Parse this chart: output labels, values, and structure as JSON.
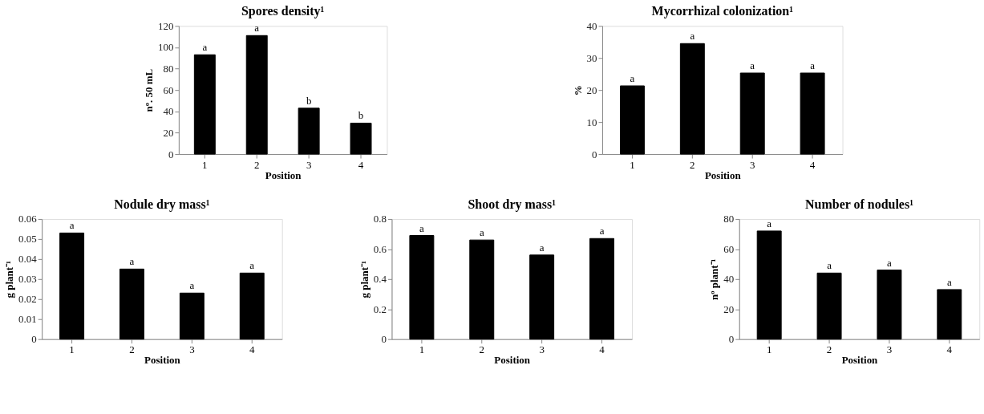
{
  "chart_data": [
    {
      "type": "bar",
      "title": "Spores density¹",
      "xlabel": "Position",
      "ylabel": "nº. 50 mL",
      "categories": [
        "1",
        "2",
        "3",
        "4"
      ],
      "values": [
        93,
        111,
        43,
        29
      ],
      "color": "#000000",
      "ylim": [
        0,
        120
      ],
      "yticks": [
        0,
        20,
        40,
        60,
        80,
        100,
        120
      ],
      "grid": false,
      "annotations": [
        {
          "text": "a",
          "x": "1",
          "y": 93
        },
        {
          "text": "a",
          "x": "2",
          "y": 111
        },
        {
          "text": "b",
          "x": "3",
          "y": 43
        },
        {
          "text": "b",
          "x": "4",
          "y": 29
        }
      ]
    },
    {
      "type": "bar",
      "title": "Mycorrhizal colonization¹",
      "xlabel": "Position",
      "ylabel": "%",
      "categories": [
        "1",
        "2",
        "3",
        "4"
      ],
      "values": [
        21.3,
        34.5,
        25.3,
        25.3
      ],
      "color": "#000000",
      "ylim": [
        0,
        40
      ],
      "yticks": [
        0,
        10,
        20,
        30,
        40
      ],
      "grid": false,
      "annotations": [
        {
          "text": "a",
          "x": "1",
          "y": 21.3
        },
        {
          "text": "a",
          "x": "2",
          "y": 34.5
        },
        {
          "text": "a",
          "x": "3",
          "y": 25.3
        },
        {
          "text": "a",
          "x": "4",
          "y": 25.3
        }
      ]
    },
    {
      "type": "bar",
      "title": "Nodule dry mass¹",
      "xlabel": "Position",
      "ylabel": "g plant⁻¹",
      "categories": [
        "1",
        "2",
        "3",
        "4"
      ],
      "values": [
        0.053,
        0.035,
        0.023,
        0.033
      ],
      "color": "#000000",
      "ylim": [
        0,
        0.06
      ],
      "yticks": [
        0,
        0.01,
        0.02,
        0.03,
        0.04,
        0.05,
        0.06
      ],
      "grid": false,
      "annotations": [
        {
          "text": "a",
          "x": "1",
          "y": 0.053
        },
        {
          "text": "a",
          "x": "2",
          "y": 0.035
        },
        {
          "text": "a",
          "x": "3",
          "y": 0.023
        },
        {
          "text": "a",
          "x": "4",
          "y": 0.033
        }
      ]
    },
    {
      "type": "bar",
      "title": "Shoot dry mass¹",
      "xlabel": "Position",
      "ylabel": "g plant⁻¹",
      "categories": [
        "1",
        "2",
        "3",
        "4"
      ],
      "values": [
        0.69,
        0.66,
        0.56,
        0.67
      ],
      "color": "#000000",
      "ylim": [
        0,
        0.8
      ],
      "yticks": [
        0,
        0.2,
        0.4,
        0.6,
        0.8
      ],
      "grid": false,
      "annotations": [
        {
          "text": "a",
          "x": "1",
          "y": 0.69
        },
        {
          "text": "a",
          "x": "2",
          "y": 0.66
        },
        {
          "text": "a",
          "x": "3",
          "y": 0.56
        },
        {
          "text": "a",
          "x": "4",
          "y": 0.67
        }
      ]
    },
    {
      "type": "bar",
      "title": "Number of nodules¹",
      "xlabel": "Position",
      "ylabel": "nº plant⁻¹",
      "categories": [
        "1",
        "2",
        "3",
        "4"
      ],
      "values": [
        72,
        44,
        46,
        33
      ],
      "color": "#000000",
      "ylim": [
        0,
        80
      ],
      "yticks": [
        0,
        20,
        40,
        60,
        80
      ],
      "grid": false,
      "annotations": [
        {
          "text": "a",
          "x": "1",
          "y": 72
        },
        {
          "text": "a",
          "x": "2",
          "y": 44
        },
        {
          "text": "a",
          "x": "3",
          "y": 46
        },
        {
          "text": "a",
          "x": "4",
          "y": 33
        }
      ]
    }
  ]
}
